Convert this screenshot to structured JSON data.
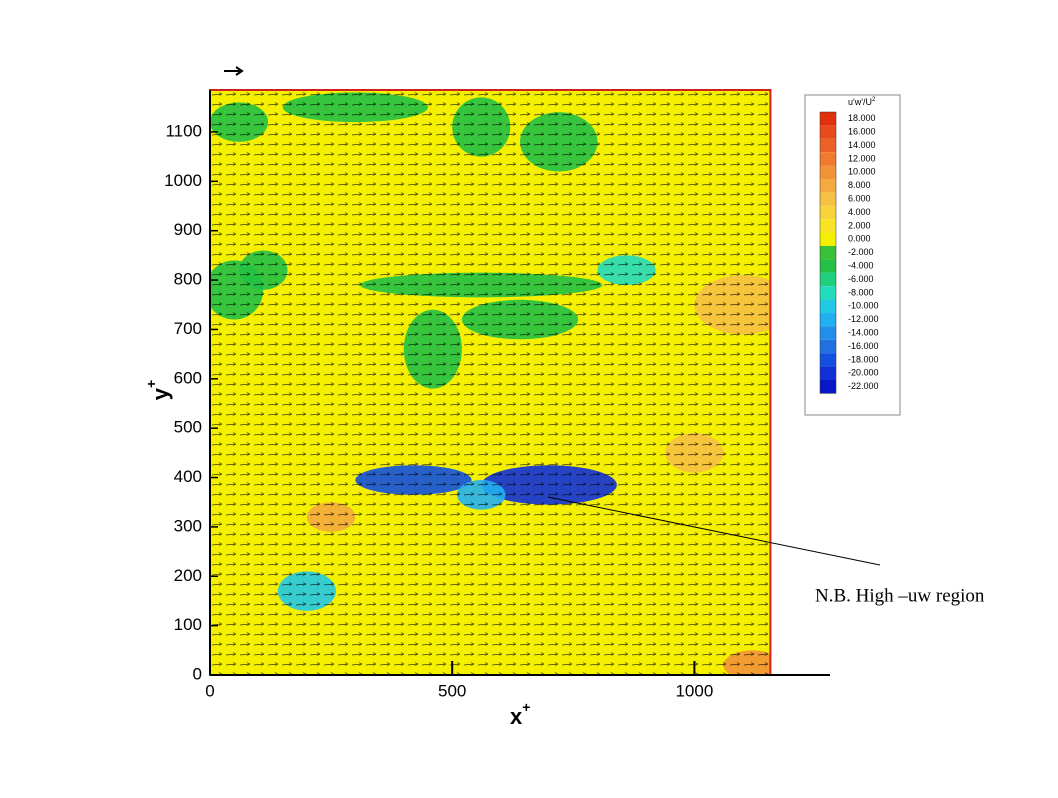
{
  "chart_data": {
    "type": "contour",
    "x_label": "x",
    "x_label_sup": "+",
    "y_label": "y",
    "y_label_sup": "+",
    "xlim": [
      0,
      1280
    ],
    "ylim": [
      0,
      1185
    ],
    "xticks": [
      0,
      500,
      1000
    ],
    "yticks": [
      0,
      100,
      200,
      300,
      400,
      500,
      600,
      700,
      800,
      900,
      1000,
      1100
    ],
    "field_extent": {
      "x": [
        0,
        1157
      ],
      "y": [
        0,
        1185
      ]
    },
    "colorbar": {
      "title": "u'w'/U",
      "title_sup": "2",
      "levels": [
        {
          "value": 18,
          "label": "18.000"
        },
        {
          "value": 16,
          "label": "16.000"
        },
        {
          "value": 14,
          "label": "14.000"
        },
        {
          "value": 12,
          "label": "12.000"
        },
        {
          "value": 10,
          "label": "10.000"
        },
        {
          "value": 8,
          "label": "8.000"
        },
        {
          "value": 6,
          "label": "6.000"
        },
        {
          "value": 4,
          "label": "4.000"
        },
        {
          "value": 2,
          "label": "2.000"
        },
        {
          "value": 0,
          "label": "0.000"
        },
        {
          "value": -2,
          "label": "-2.000"
        },
        {
          "value": -4,
          "label": "-4.000"
        },
        {
          "value": -6,
          "label": "-6.000"
        },
        {
          "value": -8,
          "label": "-8.000"
        },
        {
          "value": -10,
          "label": "-10.000"
        },
        {
          "value": -12,
          "label": "-12.000"
        },
        {
          "value": -14,
          "label": "-14.000"
        },
        {
          "value": -16,
          "label": "-16.000"
        },
        {
          "value": -18,
          "label": "-18.000"
        },
        {
          "value": -20,
          "label": "-20.000"
        },
        {
          "value": -22,
          "label": "-22.000"
        }
      ],
      "colors": [
        "#e0300c",
        "#e84a1c",
        "#ec6226",
        "#f07a2e",
        "#f29236",
        "#f4aa3e",
        "#f6c042",
        "#f8d43a",
        "#f8e424",
        "#f4f000",
        "#38c038",
        "#22c044",
        "#20d07e",
        "#22dcbc",
        "#22c8e4",
        "#22b0f2",
        "#2290ea",
        "#2070e2",
        "#1250e0",
        "#1030d8",
        "#0818c8"
      ]
    },
    "regions": [
      {
        "x": 60,
        "y": 1120,
        "rx": 60,
        "ry": 40,
        "value": -4
      },
      {
        "x": 300,
        "y": 1150,
        "rx": 150,
        "ry": 30,
        "value": -4
      },
      {
        "x": 560,
        "y": 1110,
        "rx": 60,
        "ry": 60,
        "value": -4
      },
      {
        "x": 720,
        "y": 1080,
        "rx": 80,
        "ry": 60,
        "value": -4
      },
      {
        "x": 50,
        "y": 780,
        "rx": 60,
        "ry": 60,
        "value": -4
      },
      {
        "x": 110,
        "y": 820,
        "rx": 50,
        "ry": 40,
        "value": -4
      },
      {
        "x": 560,
        "y": 790,
        "rx": 250,
        "ry": 25,
        "value": -4
      },
      {
        "x": 640,
        "y": 720,
        "rx": 120,
        "ry": 40,
        "value": -4
      },
      {
        "x": 460,
        "y": 660,
        "rx": 60,
        "ry": 80,
        "value": -4
      },
      {
        "x": 860,
        "y": 820,
        "rx": 60,
        "ry": 30,
        "value": -8
      },
      {
        "x": 420,
        "y": 395,
        "rx": 120,
        "ry": 30,
        "value": -18
      },
      {
        "x": 700,
        "y": 385,
        "rx": 140,
        "ry": 40,
        "value": -20
      },
      {
        "x": 560,
        "y": 365,
        "rx": 50,
        "ry": 30,
        "value": -12
      },
      {
        "x": 200,
        "y": 170,
        "rx": 60,
        "ry": 40,
        "value": -10
      },
      {
        "x": 250,
        "y": 320,
        "rx": 50,
        "ry": 30,
        "value": 8
      },
      {
        "x": 1100,
        "y": 750,
        "rx": 100,
        "ry": 60,
        "value": 6
      },
      {
        "x": 1120,
        "y": 20,
        "rx": 60,
        "ry": 30,
        "value": 10
      },
      {
        "x": 1000,
        "y": 450,
        "rx": 60,
        "ry": 40,
        "value": 6
      }
    ],
    "annotation": "N.B. High –uw region"
  }
}
